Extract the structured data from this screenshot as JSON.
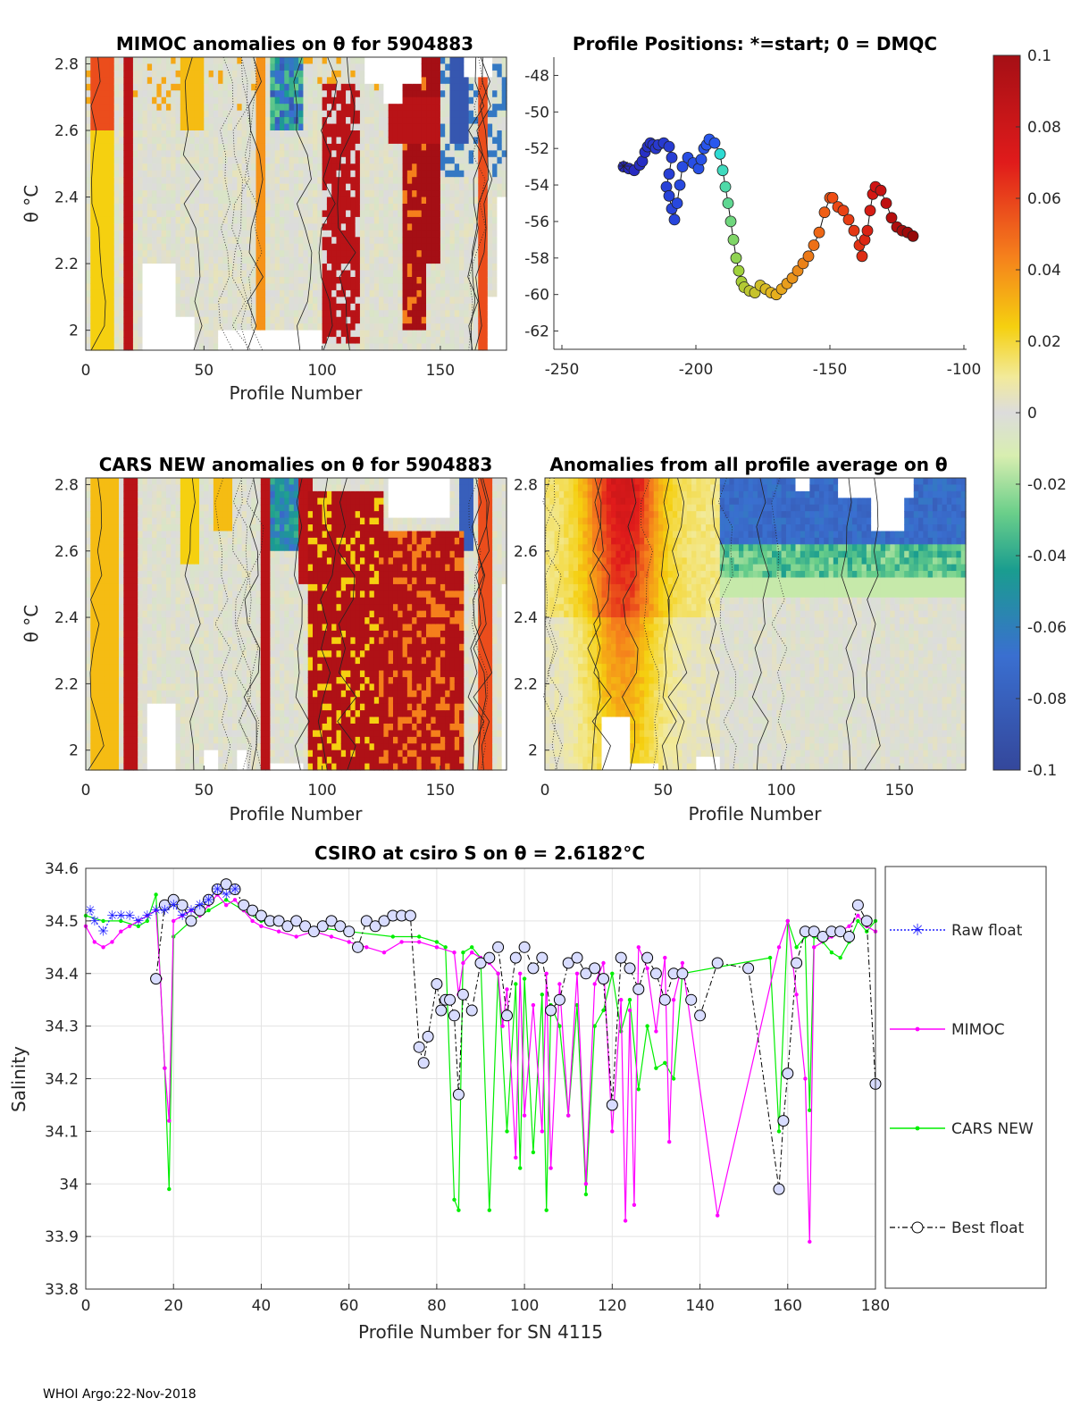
{
  "footer": "WHOI Argo:22-Nov-2018",
  "colors": {
    "raw": "#2020ff",
    "mimoc": "#ff00ff",
    "cars": "#00ee00",
    "best": "#000000",
    "missing": "#ffffff",
    "grid": "#e3e3e3"
  },
  "colorbar": {
    "ticks": [
      "0.1",
      "0.08",
      "0.06",
      "0.04",
      "0.02",
      "0",
      "-0.02",
      "-0.04",
      "-0.06",
      "-0.08",
      "-0.1"
    ],
    "range": [
      -0.1,
      0.1
    ]
  },
  "chart_data": [
    {
      "id": "mimoc",
      "type": "heatmap",
      "title": "MIMOC anomalies on θ  for 5904883",
      "xlabel": "Profile Number",
      "ylabel": "θ °C",
      "xticks": [
        "0",
        "50",
        "100",
        "150"
      ],
      "yticks": [
        "2.8",
        "2.6",
        "2.4",
        "2.2",
        "2"
      ],
      "xlim": [
        0,
        178
      ],
      "ylim": [
        1.94,
        2.82
      ]
    },
    {
      "id": "positions",
      "type": "scatter",
      "title": "Profile Positions: *=start; 0 = DMQC",
      "xticks": [
        "-250",
        "-200",
        "-150",
        "-100"
      ],
      "yticks": [
        "-48",
        "-50",
        "-52",
        "-54",
        "-56",
        "-58",
        "-60",
        "-62"
      ],
      "xlim": [
        -253,
        -99
      ],
      "ylim": [
        -63,
        -47
      ],
      "lon": [
        -227,
        -225,
        -223,
        -221,
        -220,
        -219,
        -218,
        -217,
        -216,
        -215,
        -214,
        -212,
        -210,
        -209,
        -210,
        -211,
        -210,
        -209,
        -208,
        -207,
        -206,
        -205,
        -203,
        -201,
        -199,
        -198,
        -197,
        -196,
        -195,
        -193,
        -191,
        -190,
        -189,
        -188,
        -187,
        -186,
        -185,
        -184,
        -183,
        -182,
        -180,
        -178,
        -176,
        -174,
        -172,
        -170,
        -168,
        -166,
        -164,
        -162,
        -160,
        -158,
        -156,
        -154,
        -152,
        -150,
        -149,
        -147,
        -145,
        -143,
        -141,
        -139,
        -138,
        -137,
        -136,
        -135,
        -134,
        -133,
        -131,
        -129,
        -127,
        -125,
        -123,
        -121,
        -119
      ],
      "lat": [
        -53.0,
        -53.1,
        -53.2,
        -52.9,
        -52.7,
        -52.2,
        -51.9,
        -51.7,
        -51.8,
        -52.0,
        -51.8,
        -51.7,
        -51.9,
        -52.5,
        -53.4,
        -54.1,
        -54.6,
        -55.3,
        -55.9,
        -55.0,
        -54.0,
        -53.0,
        -52.5,
        -52.8,
        -53.1,
        -52.6,
        -52.0,
        -51.8,
        -51.5,
        -51.7,
        -52.3,
        -53.2,
        -54.1,
        -55.0,
        -56.0,
        -57.0,
        -58.0,
        -58.7,
        -59.3,
        -59.6,
        -59.8,
        -59.9,
        -59.5,
        -59.7,
        -59.9,
        -60.0,
        -59.7,
        -59.4,
        -59.1,
        -58.7,
        -58.3,
        -57.9,
        -57.3,
        -56.6,
        -55.5,
        -54.7,
        -54.7,
        -55.2,
        -55.4,
        -55.9,
        -56.5,
        -57.3,
        -57.9,
        -57.0,
        -56.5,
        -55.4,
        -54.5,
        -54.1,
        -54.3,
        -55.0,
        -55.8,
        -56.3,
        -56.5,
        -56.6,
        -56.8
      ]
    },
    {
      "id": "cars",
      "type": "heatmap",
      "title": "CARS NEW anomalies on θ for 5904883",
      "xlabel": "Profile Number",
      "ylabel": "θ °C",
      "xticks": [
        "0",
        "50",
        "100",
        "150"
      ],
      "yticks": [
        "2.8",
        "2.6",
        "2.4",
        "2.2",
        "2"
      ],
      "xlim": [
        0,
        178
      ],
      "ylim": [
        1.94,
        2.82
      ]
    },
    {
      "id": "allprof",
      "type": "heatmap",
      "title": "Anomalies from all profile average on θ",
      "xlabel": "Profile Number",
      "xticks": [
        "0",
        "50",
        "100",
        "150"
      ],
      "yticks": [
        "2.8",
        "2.6",
        "2.4",
        "2.2",
        "2"
      ],
      "xlim": [
        0,
        178
      ],
      "ylim": [
        1.94,
        2.82
      ]
    },
    {
      "id": "salinity",
      "type": "line",
      "title": "CSIRO at csiro S on θ = 2.6182°C",
      "xlabel": "Profile Number for SN 4115",
      "ylabel": "Salinity",
      "xlim": [
        0,
        180
      ],
      "ylim": [
        33.8,
        34.6
      ],
      "xticks": [
        "0",
        "20",
        "40",
        "60",
        "80",
        "100",
        "120",
        "140",
        "160",
        "180"
      ],
      "yticks": [
        "34.6",
        "34.5",
        "34.4",
        "34.3",
        "34.2",
        "34.1",
        "34",
        "33.9",
        "33.8"
      ],
      "legend": [
        "Raw float",
        "MIMOC",
        "CARS NEW",
        "Best float"
      ],
      "series": [
        {
          "name": "Raw float",
          "x": [
            1,
            2,
            4,
            6,
            8,
            10,
            12,
            14,
            16,
            18,
            20,
            22,
            24,
            26,
            28,
            30,
            32,
            34
          ],
          "y": [
            34.52,
            34.5,
            34.48,
            34.51,
            34.51,
            34.51,
            34.5,
            34.51,
            34.52,
            34.52,
            34.53,
            34.51,
            34.52,
            34.53,
            34.54,
            34.56,
            34.55,
            34.56
          ]
        },
        {
          "name": "MIMOC",
          "x": [
            0,
            2,
            4,
            6,
            8,
            10,
            12,
            14,
            16,
            17,
            18,
            19,
            20,
            22,
            24,
            26,
            28,
            30,
            32,
            34,
            36,
            38,
            40,
            44,
            48,
            52,
            56,
            60,
            64,
            68,
            72,
            76,
            80,
            84,
            85,
            86,
            88,
            90,
            92,
            94,
            95,
            96,
            98,
            99,
            100,
            102,
            104,
            105,
            106,
            108,
            110,
            112,
            114,
            116,
            118,
            120,
            122,
            123,
            124,
            125,
            126,
            128,
            130,
            132,
            133,
            134,
            136,
            144,
            158,
            160,
            162,
            164,
            165,
            166,
            170,
            174,
            176,
            178,
            180
          ],
          "y": [
            34.49,
            34.46,
            34.45,
            34.46,
            34.48,
            34.49,
            34.5,
            34.51,
            34.52,
            34.39,
            34.22,
            34.12,
            34.5,
            34.51,
            34.52,
            34.51,
            34.53,
            34.55,
            34.53,
            34.54,
            34.52,
            34.5,
            34.49,
            34.48,
            34.47,
            34.48,
            34.47,
            34.46,
            34.45,
            34.44,
            34.46,
            34.46,
            34.45,
            34.44,
            34.36,
            34.42,
            34.44,
            34.43,
            34.42,
            34.4,
            34.3,
            34.37,
            34.05,
            34.4,
            34.13,
            34.34,
            34.1,
            34.4,
            34.03,
            34.38,
            34.13,
            34.4,
            34.0,
            34.38,
            34.42,
            34.1,
            34.35,
            33.93,
            34.33,
            33.96,
            34.45,
            34.41,
            34.29,
            34.43,
            34.08,
            34.35,
            34.42,
            33.94,
            34.45,
            34.5,
            34.36,
            34.2,
            33.89,
            34.45,
            34.47,
            34.49,
            34.51,
            34.49,
            34.48
          ]
        },
        {
          "name": "CARS NEW",
          "x": [
            0,
            4,
            8,
            12,
            14,
            16,
            17,
            18,
            19,
            20,
            24,
            28,
            32,
            36,
            40,
            50,
            60,
            70,
            76,
            80,
            82,
            84,
            85,
            86,
            88,
            90,
            92,
            94,
            96,
            98,
            99,
            100,
            102,
            104,
            105,
            106,
            108,
            110,
            112,
            114,
            116,
            118,
            120,
            122,
            124,
            126,
            128,
            130,
            132,
            134,
            136,
            156,
            158,
            160,
            162,
            164,
            165,
            166,
            168,
            170,
            172,
            174,
            176,
            178,
            180
          ],
          "y": [
            34.51,
            34.5,
            34.5,
            34.49,
            34.5,
            34.55,
            34.39,
            34.22,
            33.99,
            34.47,
            34.5,
            34.52,
            34.54,
            34.52,
            34.5,
            34.49,
            34.48,
            34.47,
            34.47,
            34.46,
            34.45,
            33.97,
            33.95,
            34.44,
            34.45,
            34.43,
            33.95,
            34.4,
            34.1,
            34.38,
            34.03,
            34.39,
            34.06,
            34.36,
            33.95,
            34.34,
            34.3,
            34.13,
            34.34,
            33.98,
            34.3,
            34.33,
            34.4,
            34.29,
            34.35,
            34.18,
            34.3,
            34.22,
            34.23,
            34.2,
            34.4,
            34.43,
            34.1,
            34.5,
            34.45,
            34.47,
            34.14,
            34.47,
            34.46,
            34.44,
            34.43,
            34.46,
            34.5,
            34.48,
            34.5
          ]
        },
        {
          "name": "Best float",
          "x": [
            16,
            18,
            20,
            22,
            24,
            26,
            28,
            30,
            32,
            34,
            36,
            38,
            40,
            42,
            44,
            46,
            48,
            50,
            52,
            54,
            56,
            58,
            60,
            62,
            64,
            66,
            68,
            70,
            72,
            74,
            76,
            77,
            78,
            80,
            81,
            82,
            83,
            84,
            85,
            86,
            88,
            90,
            92,
            94,
            96,
            98,
            100,
            102,
            104,
            106,
            108,
            110,
            112,
            114,
            116,
            118,
            120,
            122,
            124,
            126,
            128,
            130,
            132,
            134,
            136,
            138,
            140,
            144,
            151,
            158,
            159,
            160,
            162,
            164,
            166,
            168,
            170,
            172,
            174,
            176,
            178,
            180
          ],
          "y": [
            34.39,
            34.53,
            34.54,
            34.53,
            34.5,
            34.52,
            34.54,
            34.56,
            34.57,
            34.56,
            34.53,
            34.52,
            34.51,
            34.5,
            34.5,
            34.49,
            34.5,
            34.49,
            34.48,
            34.49,
            34.5,
            34.49,
            34.48,
            34.45,
            34.5,
            34.49,
            34.5,
            34.51,
            34.51,
            34.51,
            34.26,
            34.23,
            34.28,
            34.38,
            34.33,
            34.35,
            34.35,
            34.32,
            34.17,
            34.36,
            34.33,
            34.42,
            34.43,
            34.45,
            34.32,
            34.43,
            34.45,
            34.41,
            34.43,
            34.33,
            34.35,
            34.42,
            34.43,
            34.4,
            34.41,
            34.39,
            34.15,
            34.43,
            34.41,
            34.37,
            34.43,
            34.4,
            34.35,
            34.4,
            34.4,
            34.35,
            34.32,
            34.42,
            34.41,
            33.99,
            34.12,
            34.21,
            34.42,
            34.48,
            34.48,
            34.47,
            34.48,
            34.48,
            34.47,
            34.53,
            34.5,
            34.19
          ]
        }
      ]
    }
  ]
}
